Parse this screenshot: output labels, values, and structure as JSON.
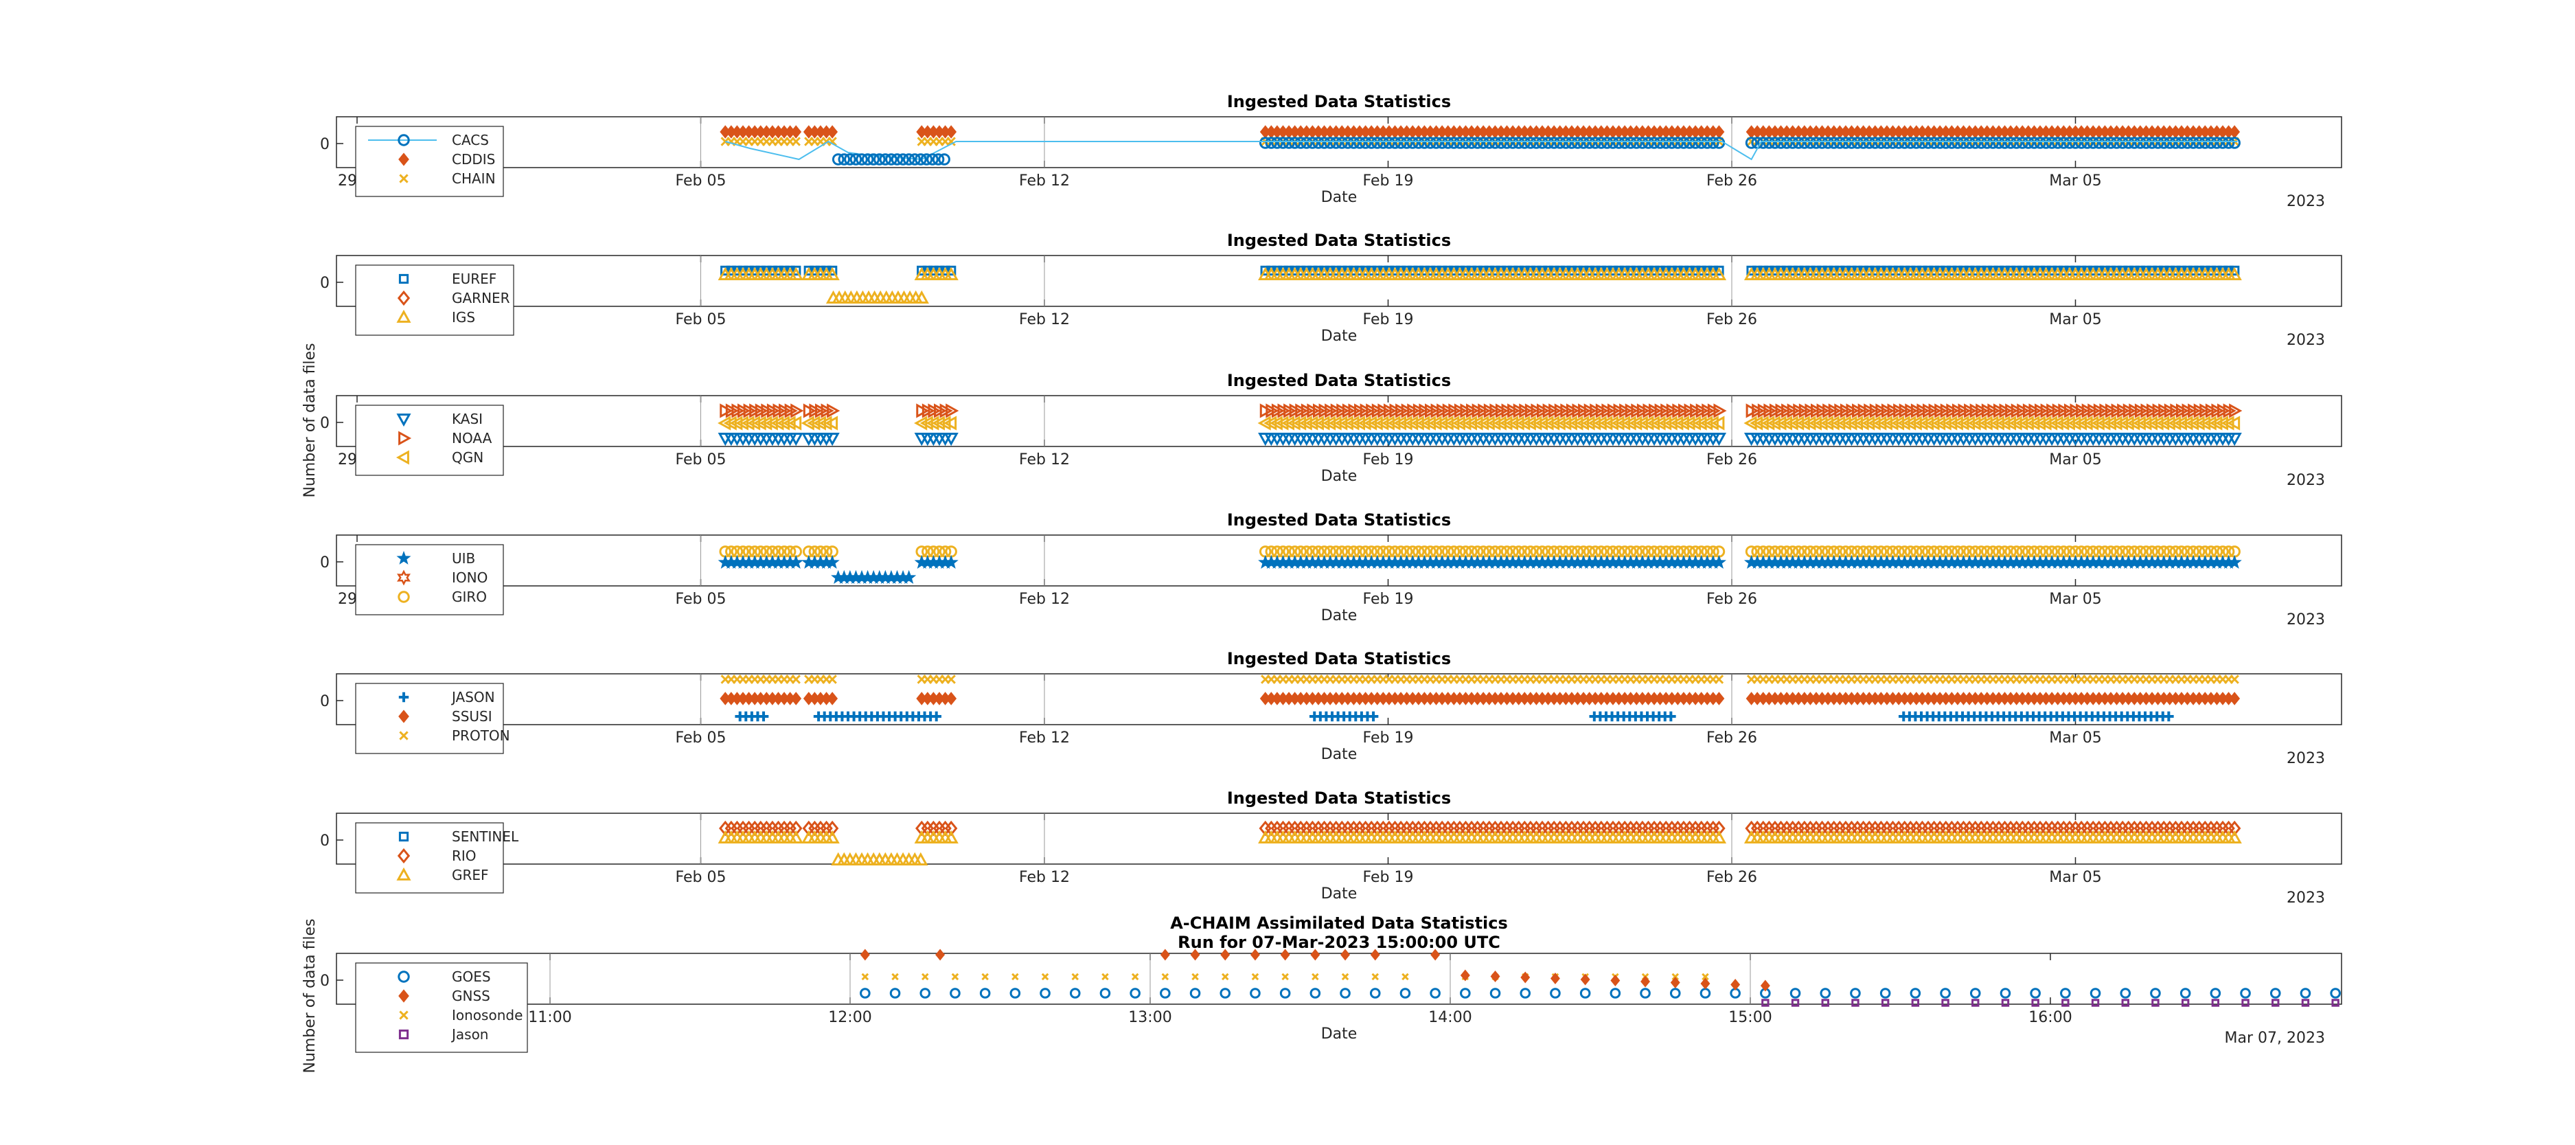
{
  "figure": {
    "ylabel_shared": "Number of data files"
  },
  "colors": {
    "blue": "#0072bd",
    "orange": "#d95319",
    "yellow": "#edb120",
    "purple": "#7e2f8e",
    "lightblue": "#4dbeee"
  },
  "chart_data": [
    {
      "type": "scatter",
      "title": "Ingested Data Statistics",
      "xlabel": "Date",
      "ylabel": "",
      "x_ticks": [
        "29",
        "Feb 05",
        "Feb 12",
        "Feb 19",
        "Feb 26",
        "Mar 05"
      ],
      "x_year_label": "2023",
      "y_ticks": [
        "0"
      ],
      "legend_position": "top-left",
      "series": [
        {
          "name": "CACS",
          "marker": "circle-line",
          "color": "#0072bd"
        },
        {
          "name": "CDDIS",
          "marker": "diamond-filled",
          "color": "#d95319"
        },
        {
          "name": "CHAIN",
          "marker": "x",
          "color": "#edb120"
        }
      ]
    },
    {
      "type": "scatter",
      "title": "Ingested Data Statistics",
      "xlabel": "Date",
      "ylabel": "",
      "x_ticks": [
        "Feb 05",
        "Feb 12",
        "Feb 19",
        "Feb 26",
        "Mar 05"
      ],
      "x_year_label": "2023",
      "y_ticks": [
        "0"
      ],
      "legend_position": "top-left",
      "series": [
        {
          "name": "EUREF",
          "marker": "square",
          "color": "#0072bd"
        },
        {
          "name": "GARNER",
          "marker": "diamond",
          "color": "#d95319"
        },
        {
          "name": "IGS",
          "marker": "triangle-up",
          "color": "#edb120"
        }
      ]
    },
    {
      "type": "scatter",
      "title": "Ingested Data Statistics",
      "xlabel": "Date",
      "ylabel": "",
      "x_ticks": [
        "29",
        "Feb 05",
        "Feb 12",
        "Feb 19",
        "Feb 26",
        "Mar 05"
      ],
      "x_year_label": "2023",
      "y_ticks": [
        "0"
      ],
      "legend_position": "top-left",
      "series": [
        {
          "name": "KASI",
          "marker": "triangle-down",
          "color": "#0072bd"
        },
        {
          "name": "NOAA",
          "marker": "triangle-right",
          "color": "#d95319"
        },
        {
          "name": "QGN",
          "marker": "triangle-left",
          "color": "#edb120"
        }
      ]
    },
    {
      "type": "scatter",
      "title": "Ingested Data Statistics",
      "xlabel": "Date",
      "ylabel": "",
      "x_ticks": [
        "29",
        "Feb 05",
        "Feb 12",
        "Feb 19",
        "Feb 26",
        "Mar 05"
      ],
      "x_year_label": "2023",
      "y_ticks": [
        "0"
      ],
      "legend_position": "top-left",
      "series": [
        {
          "name": "UIB",
          "marker": "pentagram",
          "color": "#0072bd"
        },
        {
          "name": "IONO",
          "marker": "hexagram",
          "color": "#d95319"
        },
        {
          "name": "GIRO",
          "marker": "circle",
          "color": "#edb120"
        }
      ]
    },
    {
      "type": "scatter",
      "title": "Ingested Data Statistics",
      "xlabel": "Date",
      "ylabel": "",
      "x_ticks": [
        "Feb 05",
        "Feb 12",
        "Feb 19",
        "Feb 26",
        "Mar 05"
      ],
      "x_year_label": "2023",
      "y_ticks": [
        "0"
      ],
      "legend_position": "top-left",
      "series": [
        {
          "name": "JASON",
          "marker": "plus",
          "color": "#0072bd"
        },
        {
          "name": "SSUSI",
          "marker": "diamond-filled",
          "color": "#d95319"
        },
        {
          "name": "PROTON",
          "marker": "x",
          "color": "#edb120"
        }
      ]
    },
    {
      "type": "scatter",
      "title": "Ingested Data Statistics",
      "xlabel": "Date",
      "ylabel": "",
      "x_ticks": [
        "Feb 05",
        "Feb 12",
        "Feb 19",
        "Feb 26",
        "Mar 05"
      ],
      "x_year_label": "2023",
      "y_ticks": [
        "0"
      ],
      "legend_position": "top-left",
      "series": [
        {
          "name": "SENTINEL",
          "marker": "square",
          "color": "#0072bd"
        },
        {
          "name": "RIO",
          "marker": "diamond",
          "color": "#d95319"
        },
        {
          "name": "GREF",
          "marker": "triangle-up",
          "color": "#edb120"
        }
      ]
    },
    {
      "type": "scatter",
      "title": "A-CHAIM Assimilated Data Statistics",
      "subtitle": "Run for 07-Mar-2023 15:00:00 UTC",
      "xlabel": "Date",
      "ylabel": "Number of data files",
      "x_ticks": [
        "11:00",
        "12:00",
        "13:00",
        "14:00",
        "15:00",
        "16:00"
      ],
      "x_year_label": "Mar 07, 2023",
      "y_ticks": [
        "0"
      ],
      "legend_position": "top-left",
      "series": [
        {
          "name": "GOES",
          "marker": "circle",
          "color": "#0072bd"
        },
        {
          "name": "GNSS",
          "marker": "diamond-filled",
          "color": "#d95319"
        },
        {
          "name": "Ionosonde",
          "marker": "x",
          "color": "#edb120"
        },
        {
          "name": "Jason",
          "marker": "square",
          "color": "#7e2f8e"
        }
      ]
    }
  ]
}
